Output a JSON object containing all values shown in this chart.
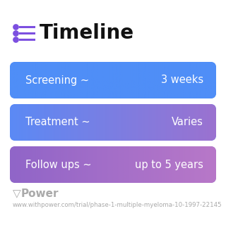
{
  "title": "Timeline",
  "title_fontsize": 20,
  "title_color": "#111111",
  "icon_color": "#7C4FE0",
  "bg_color": "#ffffff",
  "rows": [
    {
      "label": "Screening ~",
      "value": "3 weeks",
      "color_left": "#4F8EF7",
      "color_right": "#4F8EF7"
    },
    {
      "label": "Treatment ~",
      "value": "Varies",
      "color_left": "#5B8AF5",
      "color_right": "#9B72D0"
    },
    {
      "label": "Follow ups ~",
      "value": "up to 5 years",
      "color_left": "#9065C8",
      "color_right": "#B878C8"
    }
  ],
  "label_fontsize": 10.5,
  "value_fontsize": 10.5,
  "footer_text": "Power",
  "footer_url": "www.withpower.com/trial/phase-1-multiple-myeloma-10-1997-22145",
  "footer_fontsize": 6.2,
  "footer_icon_color": "#AAAAAA",
  "footer_text_color": "#AAAAAA"
}
